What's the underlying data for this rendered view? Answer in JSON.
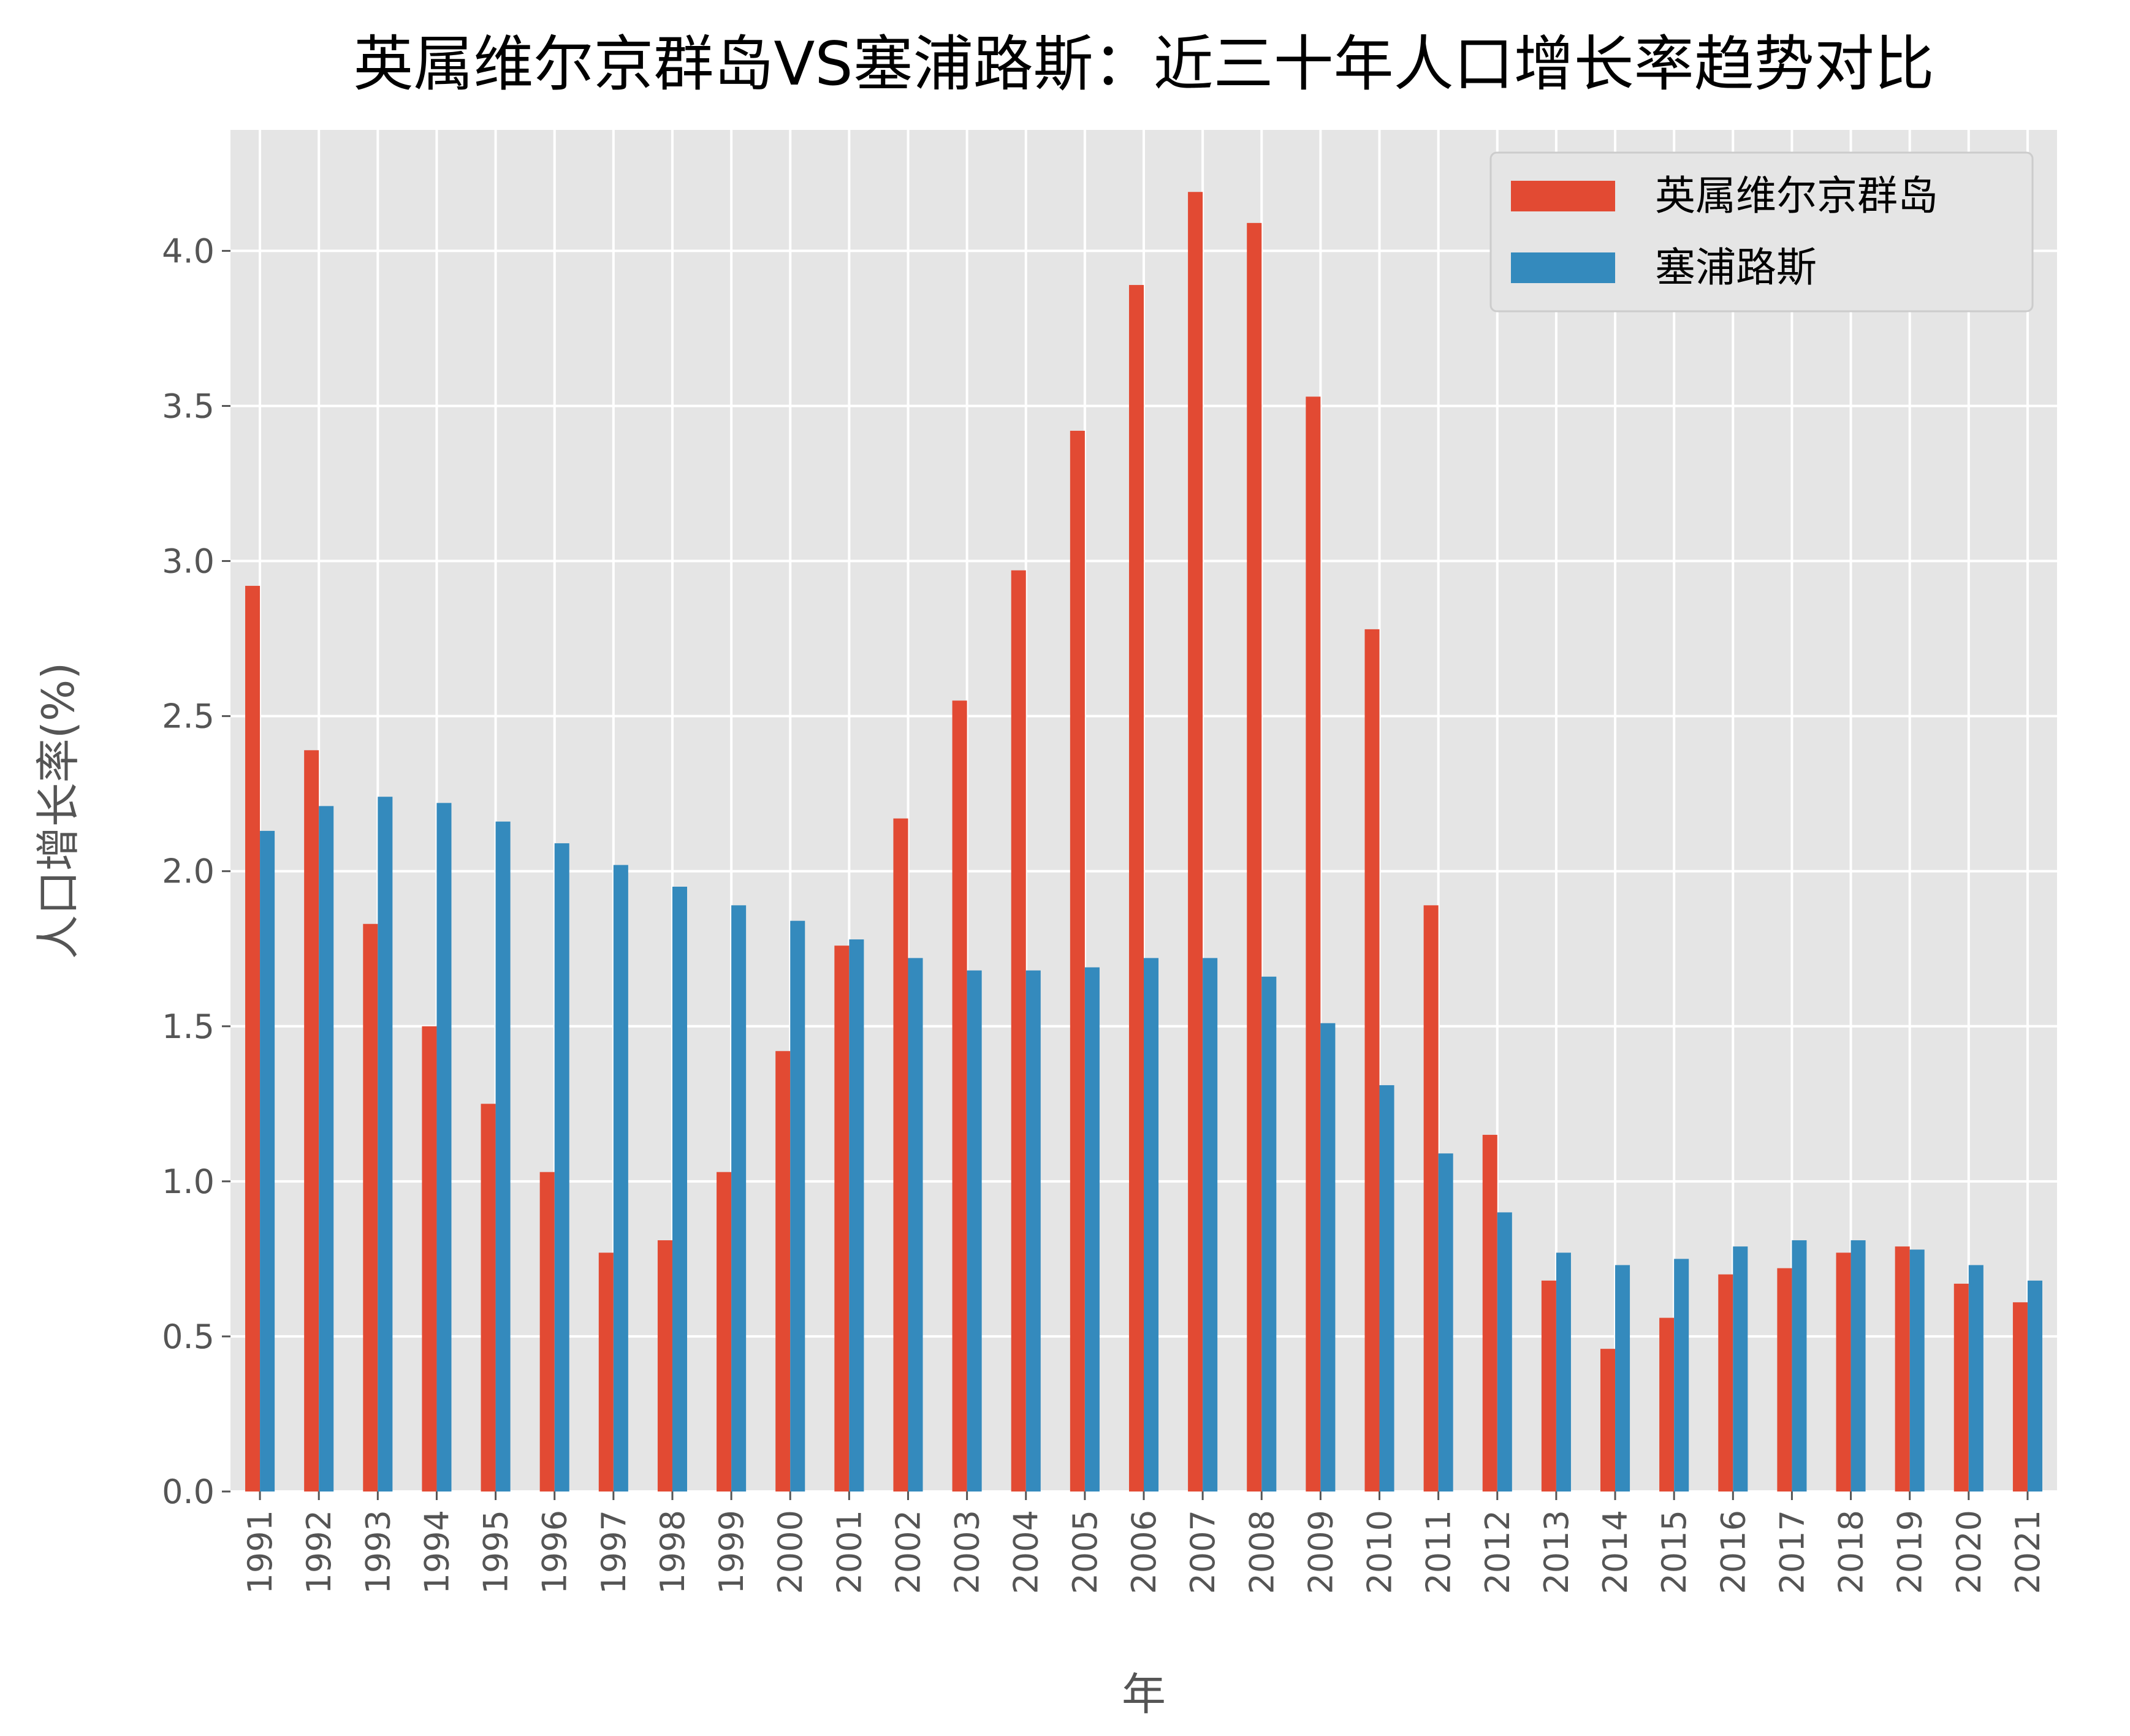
{
  "chart_data": {
    "type": "bar",
    "title": "英属维尔京群岛VS塞浦路斯：近三十年人口增长率趋势对比",
    "xlabel": "年",
    "ylabel": "人口增长率(%)",
    "ylim": [
      0,
      4.39
    ],
    "yticks": [
      0.0,
      0.5,
      1.0,
      1.5,
      2.0,
      2.5,
      3.0,
      3.5,
      4.0
    ],
    "ytick_labels": [
      "0.0",
      "0.5",
      "1.0",
      "1.5",
      "2.0",
      "2.5",
      "3.0",
      "3.5",
      "4.0"
    ],
    "grid": true,
    "legend_position": "top-right",
    "categories": [
      "1991",
      "1992",
      "1993",
      "1994",
      "1995",
      "1996",
      "1997",
      "1998",
      "1999",
      "2000",
      "2001",
      "2002",
      "2003",
      "2004",
      "2005",
      "2006",
      "2007",
      "2008",
      "2009",
      "2010",
      "2011",
      "2012",
      "2013",
      "2014",
      "2015",
      "2016",
      "2017",
      "2018",
      "2019",
      "2020",
      "2021"
    ],
    "series": [
      {
        "name": "英属维尔京群岛",
        "color": "#E24A33",
        "values": [
          2.92,
          2.39,
          1.83,
          1.5,
          1.25,
          1.03,
          0.77,
          0.81,
          1.03,
          1.42,
          1.76,
          2.17,
          2.55,
          2.97,
          3.42,
          3.89,
          4.19,
          4.09,
          3.53,
          2.78,
          1.89,
          1.15,
          0.68,
          0.46,
          0.56,
          0.7,
          0.72,
          0.77,
          0.79,
          0.67,
          0.61
        ]
      },
      {
        "name": "塞浦路斯",
        "color": "#348ABD",
        "values": [
          2.13,
          2.21,
          2.24,
          2.22,
          2.16,
          2.09,
          2.02,
          1.95,
          1.89,
          1.84,
          1.78,
          1.72,
          1.68,
          1.68,
          1.69,
          1.72,
          1.72,
          1.66,
          1.51,
          1.31,
          1.09,
          0.9,
          0.77,
          0.73,
          0.75,
          0.79,
          0.81,
          0.81,
          0.78,
          0.73,
          0.68
        ]
      }
    ]
  }
}
